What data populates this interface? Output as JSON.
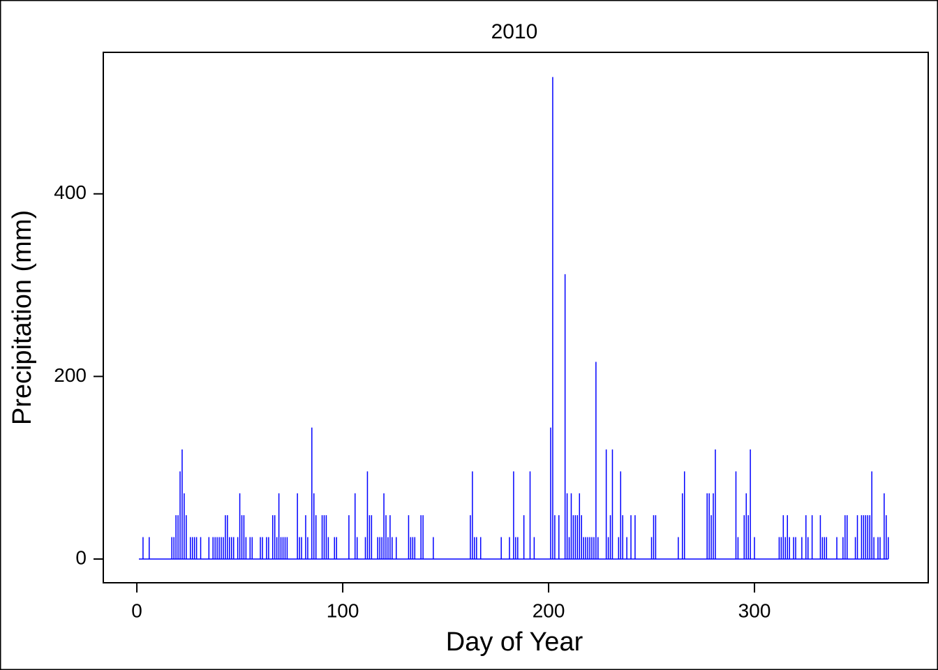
{
  "chart_data": {
    "type": "line",
    "title": "2010",
    "x_label": "Day of Year",
    "y_label": "Precipitation (mm)",
    "color": "#0000ff",
    "xlim": [
      -16.3,
      384.4
    ],
    "ylim": [
      -26,
      555
    ],
    "xticks": [
      0,
      100,
      200,
      300
    ],
    "yticks": [
      0,
      200,
      400
    ],
    "grid": false,
    "x": [
      1,
      2,
      3,
      4,
      5,
      6,
      7,
      8,
      9,
      10,
      11,
      12,
      13,
      14,
      15,
      16,
      17,
      18,
      19,
      20,
      21,
      22,
      23,
      24,
      25,
      26,
      27,
      28,
      29,
      30,
      31,
      32,
      33,
      34,
      35,
      36,
      37,
      38,
      39,
      40,
      41,
      42,
      43,
      44,
      45,
      46,
      47,
      48,
      49,
      50,
      51,
      52,
      53,
      54,
      55,
      56,
      57,
      58,
      59,
      60,
      61,
      62,
      63,
      64,
      65,
      66,
      67,
      68,
      69,
      70,
      71,
      72,
      73,
      74,
      75,
      76,
      77,
      78,
      79,
      80,
      81,
      82,
      83,
      84,
      85,
      86,
      87,
      88,
      89,
      90,
      91,
      92,
      93,
      94,
      95,
      96,
      97,
      98,
      99,
      100,
      101,
      102,
      103,
      104,
      105,
      106,
      107,
      108,
      109,
      110,
      111,
      112,
      113,
      114,
      115,
      116,
      117,
      118,
      119,
      120,
      121,
      122,
      123,
      124,
      125,
      126,
      127,
      128,
      129,
      130,
      131,
      132,
      133,
      134,
      135,
      136,
      137,
      138,
      139,
      140,
      141,
      142,
      143,
      144,
      145,
      146,
      147,
      148,
      149,
      150,
      151,
      152,
      153,
      154,
      155,
      156,
      157,
      158,
      159,
      160,
      161,
      162,
      163,
      164,
      165,
      166,
      167,
      168,
      169,
      170,
      171,
      172,
      173,
      174,
      175,
      176,
      177,
      178,
      179,
      180,
      181,
      182,
      183,
      184,
      185,
      186,
      187,
      188,
      189,
      190,
      191,
      192,
      193,
      194,
      195,
      196,
      197,
      198,
      199,
      200,
      201,
      202,
      203,
      204,
      205,
      206,
      207,
      208,
      209,
      210,
      211,
      212,
      213,
      214,
      215,
      216,
      217,
      218,
      219,
      220,
      221,
      222,
      223,
      224,
      225,
      226,
      227,
      228,
      229,
      230,
      231,
      232,
      233,
      234,
      235,
      236,
      237,
      238,
      239,
      240,
      241,
      242,
      243,
      244,
      245,
      246,
      247,
      248,
      249,
      250,
      251,
      252,
      253,
      254,
      255,
      256,
      257,
      258,
      259,
      260,
      261,
      262,
      263,
      264,
      265,
      266,
      267,
      268,
      269,
      270,
      271,
      272,
      273,
      274,
      275,
      276,
      277,
      278,
      279,
      280,
      281,
      282,
      283,
      284,
      285,
      286,
      287,
      288,
      289,
      290,
      291,
      292,
      293,
      294,
      295,
      296,
      297,
      298,
      299,
      300,
      301,
      302,
      303,
      304,
      305,
      306,
      307,
      308,
      309,
      310,
      311,
      312,
      313,
      314,
      315,
      316,
      317,
      318,
      319,
      320,
      321,
      322,
      323,
      324,
      325,
      326,
      327,
      328,
      329,
      330,
      331,
      332,
      333,
      334,
      335,
      336,
      337,
      338,
      339,
      340,
      341,
      342,
      343,
      344,
      345,
      346,
      347,
      348,
      349,
      350,
      351,
      352,
      353,
      354,
      355,
      356,
      357,
      358,
      359,
      360,
      361,
      362,
      363,
      364,
      365
    ],
    "values": [
      0,
      0,
      24,
      0,
      0,
      24,
      0,
      0,
      0,
      0,
      0,
      0,
      0,
      0,
      0,
      0,
      24,
      24,
      48,
      48,
      96,
      120,
      72,
      48,
      0,
      24,
      24,
      24,
      24,
      0,
      24,
      0,
      0,
      0,
      24,
      0,
      24,
      24,
      24,
      24,
      24,
      24,
      48,
      48,
      24,
      24,
      24,
      0,
      24,
      72,
      48,
      48,
      24,
      0,
      24,
      24,
      0,
      0,
      0,
      24,
      24,
      0,
      24,
      24,
      0,
      48,
      48,
      24,
      72,
      24,
      24,
      24,
      24,
      0,
      0,
      0,
      0,
      72,
      24,
      24,
      0,
      48,
      24,
      0,
      144,
      72,
      48,
      0,
      0,
      48,
      48,
      48,
      24,
      0,
      0,
      24,
      24,
      0,
      0,
      0,
      0,
      0,
      48,
      0,
      0,
      72,
      24,
      0,
      0,
      0,
      24,
      96,
      48,
      48,
      0,
      0,
      24,
      24,
      24,
      72,
      48,
      24,
      48,
      24,
      0,
      24,
      0,
      0,
      0,
      0,
      0,
      48,
      24,
      24,
      24,
      0,
      0,
      48,
      48,
      0,
      0,
      0,
      0,
      24,
      0,
      0,
      0,
      0,
      0,
      0,
      0,
      0,
      0,
      0,
      0,
      0,
      0,
      0,
      0,
      0,
      0,
      48,
      96,
      24,
      24,
      0,
      24,
      0,
      0,
      0,
      0,
      0,
      0,
      0,
      0,
      0,
      24,
      0,
      0,
      0,
      24,
      0,
      96,
      24,
      24,
      0,
      0,
      48,
      0,
      0,
      96,
      0,
      24,
      0,
      0,
      0,
      0,
      0,
      0,
      0,
      144,
      528,
      48,
      0,
      48,
      0,
      0,
      312,
      72,
      24,
      72,
      48,
      48,
      48,
      72,
      48,
      24,
      24,
      24,
      24,
      24,
      24,
      216,
      24,
      0,
      0,
      0,
      120,
      24,
      48,
      120,
      0,
      0,
      24,
      96,
      48,
      0,
      24,
      0,
      48,
      0,
      48,
      0,
      0,
      0,
      0,
      0,
      0,
      0,
      24,
      48,
      48,
      0,
      0,
      0,
      0,
      0,
      0,
      0,
      0,
      0,
      0,
      24,
      0,
      72,
      96,
      0,
      0,
      0,
      0,
      0,
      0,
      0,
      0,
      0,
      0,
      72,
      72,
      48,
      72,
      120,
      0,
      0,
      0,
      0,
      0,
      0,
      0,
      0,
      0,
      96,
      24,
      0,
      0,
      48,
      72,
      48,
      120,
      0,
      24,
      0,
      0,
      0,
      0,
      0,
      0,
      0,
      0,
      0,
      0,
      0,
      24,
      24,
      48,
      24,
      48,
      24,
      0,
      24,
      24,
      0,
      0,
      24,
      0,
      48,
      24,
      0,
      48,
      0,
      0,
      0,
      48,
      24,
      24,
      24,
      0,
      0,
      0,
      0,
      24,
      0,
      0,
      24,
      48,
      48,
      0,
      0,
      0,
      24,
      48,
      0,
      48,
      48,
      48,
      48,
      48,
      96,
      24,
      0,
      24,
      24,
      0,
      72,
      48,
      24
    ]
  }
}
